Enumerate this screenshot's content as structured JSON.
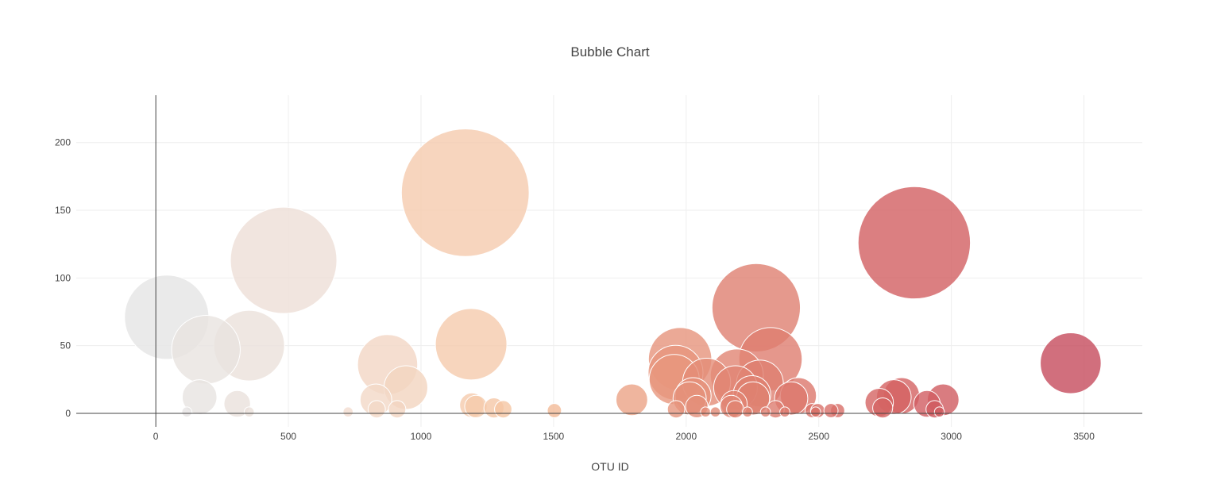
{
  "chart_data": {
    "type": "scatter",
    "subtype": "bubble",
    "title": "Bubble Chart",
    "xlabel": "OTU ID",
    "ylabel": "",
    "xlim": [
      -300,
      3720
    ],
    "ylim": [
      -10,
      235
    ],
    "x_ticks": [
      0,
      500,
      1000,
      1500,
      2000,
      2500,
      3000,
      3500
    ],
    "y_ticks": [
      0,
      50,
      100,
      150,
      200
    ],
    "grid": true,
    "legend": "none",
    "color_scale": "OTU ID mapped from light grey (low) through peach to crimson (high)",
    "points": [
      {
        "x": 41,
        "y": 71
      },
      {
        "x": 189,
        "y": 47
      },
      {
        "x": 352,
        "y": 50
      },
      {
        "x": 482,
        "y": 113
      },
      {
        "x": 1167,
        "y": 163
      },
      {
        "x": 1189,
        "y": 51
      },
      {
        "x": 874,
        "y": 36
      },
      {
        "x": 943,
        "y": 19
      },
      {
        "x": 165,
        "y": 12
      },
      {
        "x": 307,
        "y": 7
      },
      {
        "x": 830,
        "y": 10
      },
      {
        "x": 1795,
        "y": 10
      },
      {
        "x": 1977,
        "y": 40
      },
      {
        "x": 1960,
        "y": 30
      },
      {
        "x": 1955,
        "y": 25
      },
      {
        "x": 2264,
        "y": 78
      },
      {
        "x": 2318,
        "y": 40
      },
      {
        "x": 2191,
        "y": 28
      },
      {
        "x": 2077,
        "y": 23
      },
      {
        "x": 2278,
        "y": 22
      },
      {
        "x": 2186,
        "y": 19
      },
      {
        "x": 2248,
        "y": 14
      },
      {
        "x": 2026,
        "y": 13
      },
      {
        "x": 2013,
        "y": 11
      },
      {
        "x": 2252,
        "y": 11
      },
      {
        "x": 2423,
        "y": 13
      },
      {
        "x": 2396,
        "y": 11
      },
      {
        "x": 2860,
        "y": 126
      },
      {
        "x": 3450,
        "y": 37
      },
      {
        "x": 2812,
        "y": 13
      },
      {
        "x": 2783,
        "y": 12
      },
      {
        "x": 2969,
        "y": 10
      },
      {
        "x": 2728,
        "y": 8
      },
      {
        "x": 2908,
        "y": 7
      },
      {
        "x": 2180,
        "y": 7
      },
      {
        "x": 1192,
        "y": 6
      },
      {
        "x": 1207,
        "y": 5
      },
      {
        "x": 2170,
        "y": 5
      },
      {
        "x": 2040,
        "y": 5
      },
      {
        "x": 2741,
        "y": 4
      },
      {
        "x": 1275,
        "y": 4
      },
      {
        "x": 1310,
        "y": 3
      },
      {
        "x": 2937,
        "y": 3
      },
      {
        "x": 1962,
        "y": 3
      },
      {
        "x": 833,
        "y": 3
      },
      {
        "x": 910,
        "y": 3
      },
      {
        "x": 2185,
        "y": 3
      },
      {
        "x": 2337,
        "y": 3
      },
      {
        "x": 1503,
        "y": 2
      },
      {
        "x": 2475,
        "y": 2
      },
      {
        "x": 2496,
        "y": 2
      },
      {
        "x": 2571,
        "y": 2
      },
      {
        "x": 2546,
        "y": 2
      },
      {
        "x": 2073,
        "y": 1
      },
      {
        "x": 2110,
        "y": 1
      },
      {
        "x": 725,
        "y": 1
      },
      {
        "x": 2231,
        "y": 1
      },
      {
        "x": 2299,
        "y": 1
      },
      {
        "x": 2372,
        "y": 1
      },
      {
        "x": 2488,
        "y": 1
      },
      {
        "x": 2955,
        "y": 1
      },
      {
        "x": 352,
        "y": 1
      },
      {
        "x": 117,
        "y": 1
      }
    ]
  },
  "colors": {
    "scale_stops": [
      "#e5e5e5",
      "#f2dccf",
      "#f6c29c",
      "#e38b76",
      "#d46262",
      "#c64b5c"
    ],
    "title": "#444444",
    "grid": "#eeeeee",
    "axis": "#444444"
  }
}
